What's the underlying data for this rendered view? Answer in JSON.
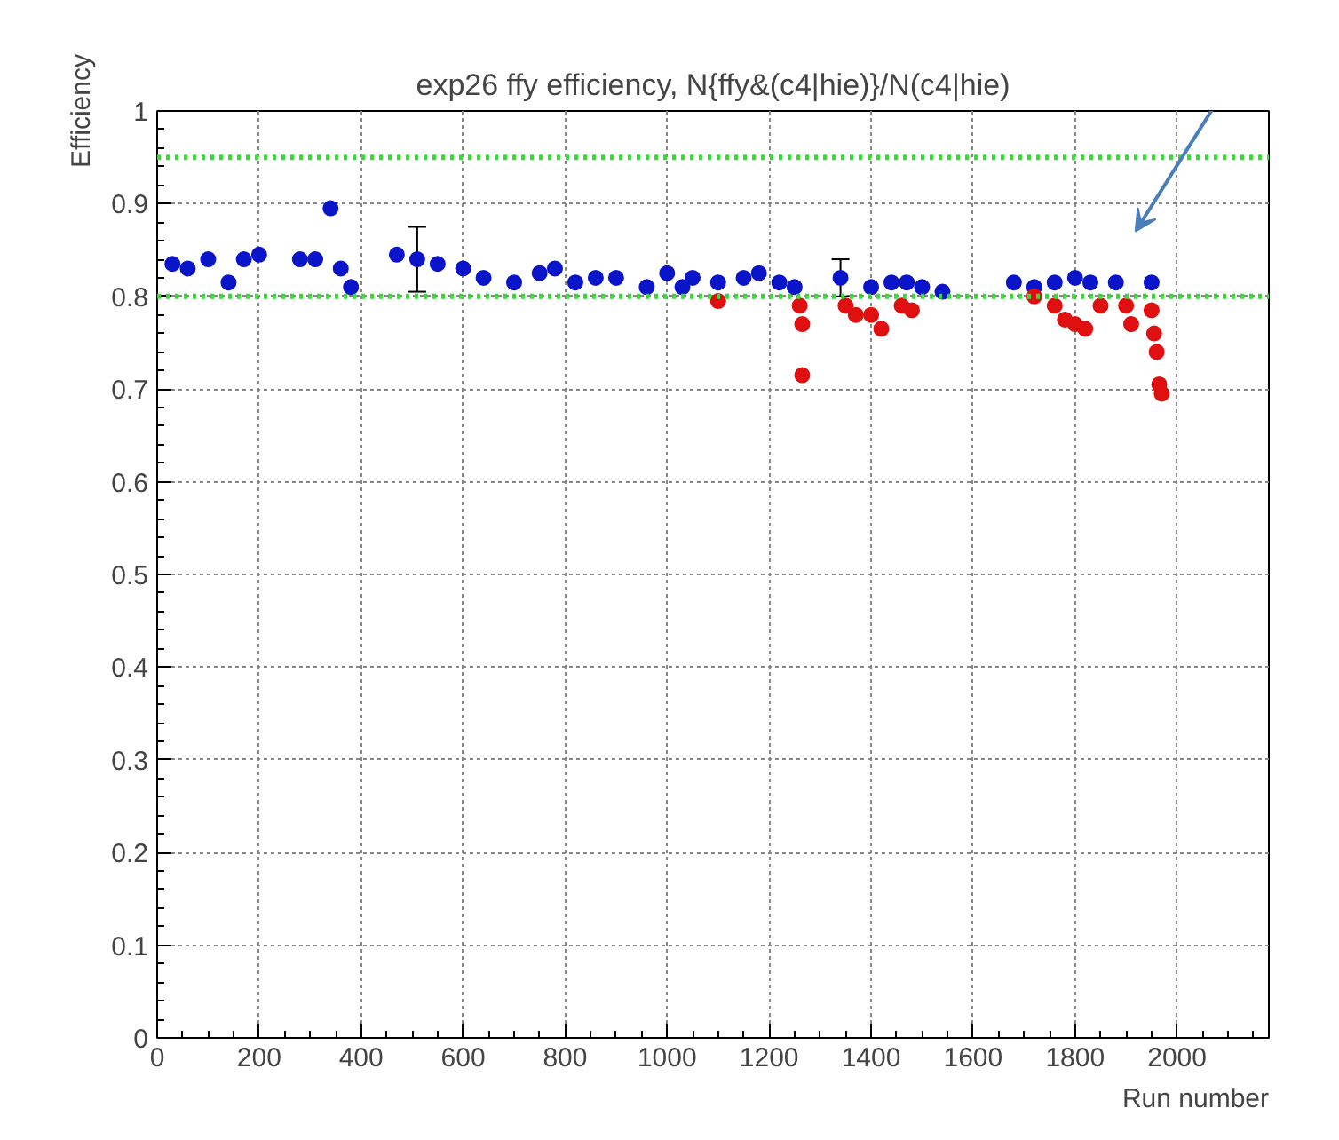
{
  "chart_data": {
    "type": "scatter",
    "title": "exp26 ffy efficiency, N{ffy&(c4|hie)}/N(c4|hie)",
    "xlabel": "Run number",
    "ylabel": "Efficiency",
    "xlim": [
      0,
      2180
    ],
    "ylim": [
      0,
      1
    ],
    "xticks": [
      0,
      200,
      400,
      600,
      800,
      1000,
      1200,
      1400,
      1600,
      1800,
      2000
    ],
    "yticks": [
      0,
      0.1,
      0.2,
      0.3,
      0.4,
      0.5,
      0.6,
      0.7,
      0.8,
      0.9,
      1
    ],
    "grid": true,
    "marker": "circle",
    "ref_lines": [
      {
        "axis": "y",
        "value": 0.95,
        "color": "#33dd33",
        "line_style": "dotted"
      },
      {
        "axis": "y",
        "value": 0.8,
        "color": "#33dd33",
        "line_style": "dotted"
      }
    ],
    "series": [
      {
        "color": "#0a14c8",
        "x": [
          30,
          60,
          100,
          140,
          170,
          200,
          280,
          310,
          340,
          360,
          380,
          470,
          510,
          550,
          600,
          640,
          700,
          750,
          780,
          820,
          860,
          900,
          960,
          1000,
          1030,
          1050,
          1100,
          1150,
          1180,
          1220,
          1250,
          1340,
          1400,
          1440,
          1470,
          1500,
          1540,
          1680,
          1720,
          1760,
          1800,
          1830,
          1880,
          1950
        ],
        "values": [
          0.835,
          0.83,
          0.84,
          0.815,
          0.84,
          0.845,
          0.84,
          0.84,
          0.895,
          0.83,
          0.81,
          0.845,
          0.84,
          0.835,
          0.83,
          0.82,
          0.815,
          0.825,
          0.83,
          0.815,
          0.82,
          0.82,
          0.81,
          0.825,
          0.81,
          0.82,
          0.815,
          0.82,
          0.825,
          0.815,
          0.81,
          0.82,
          0.81,
          0.815,
          0.815,
          0.81,
          0.805,
          0.815,
          0.81,
          0.815,
          0.82,
          0.815,
          0.815,
          0.815
        ],
        "errors": [
          null,
          null,
          null,
          null,
          null,
          null,
          null,
          null,
          null,
          null,
          null,
          null,
          0.035,
          null,
          null,
          null,
          null,
          null,
          null,
          null,
          null,
          null,
          null,
          null,
          null,
          null,
          null,
          null,
          null,
          null,
          null,
          0.02,
          null,
          null,
          null,
          null,
          null,
          null,
          null,
          null,
          null,
          null,
          null,
          null
        ]
      },
      {
        "color": "#e01010",
        "x": [
          1100,
          1260,
          1265,
          1265,
          1350,
          1370,
          1400,
          1420,
          1460,
          1480,
          1720,
          1760,
          1780,
          1800,
          1820,
          1850,
          1900,
          1910,
          1950,
          1955,
          1960,
          1965,
          1970
        ],
        "values": [
          0.795,
          0.79,
          0.77,
          0.715,
          0.79,
          0.78,
          0.78,
          0.765,
          0.79,
          0.785,
          0.8,
          0.79,
          0.775,
          0.77,
          0.765,
          0.79,
          0.79,
          0.77,
          0.785,
          0.76,
          0.74,
          0.705,
          0.695
        ]
      }
    ]
  }
}
